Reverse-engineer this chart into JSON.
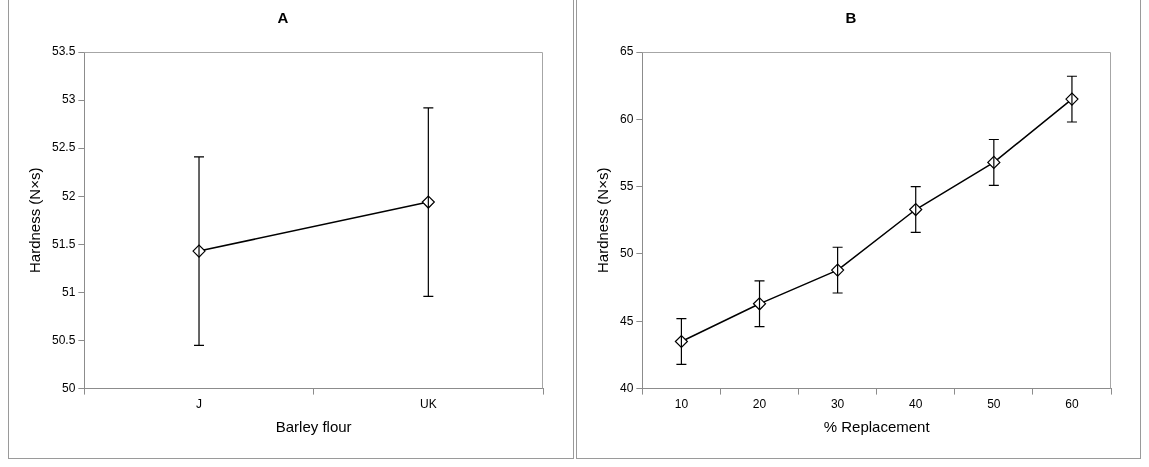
{
  "chart_data": [
    {
      "type": "line",
      "title": "A",
      "xlabel": "Barley flour",
      "ylabel": "Hardness (N×s)",
      "categories": [
        "J",
        "UK"
      ],
      "series": [
        {
          "color": "#000000",
          "values": [
            51.43,
            51.94
          ],
          "errors": [
            0.98,
            0.98
          ]
        }
      ],
      "ylim": [
        50,
        53.5
      ],
      "yticks": [
        50,
        50.5,
        51,
        51.5,
        52,
        52.5,
        53,
        53.5
      ],
      "grid": false,
      "legend": false,
      "marker": "diamond",
      "line_style": "solid"
    },
    {
      "type": "line",
      "title": "B",
      "xlabel": "% Replacement",
      "ylabel": "Hardness (N×s)",
      "categories": [
        "10",
        "20",
        "30",
        "40",
        "50",
        "60"
      ],
      "series": [
        {
          "color": "#000000",
          "values": [
            43.5,
            46.3,
            48.8,
            53.3,
            56.8,
            61.5
          ],
          "errors": [
            1.7,
            1.7,
            1.7,
            1.7,
            1.7,
            1.7
          ]
        }
      ],
      "ylim": [
        40,
        65
      ],
      "yticks": [
        40,
        45,
        50,
        55,
        60,
        65
      ],
      "grid": false,
      "legend": false,
      "marker": "diamond",
      "line_style": "solid"
    }
  ]
}
